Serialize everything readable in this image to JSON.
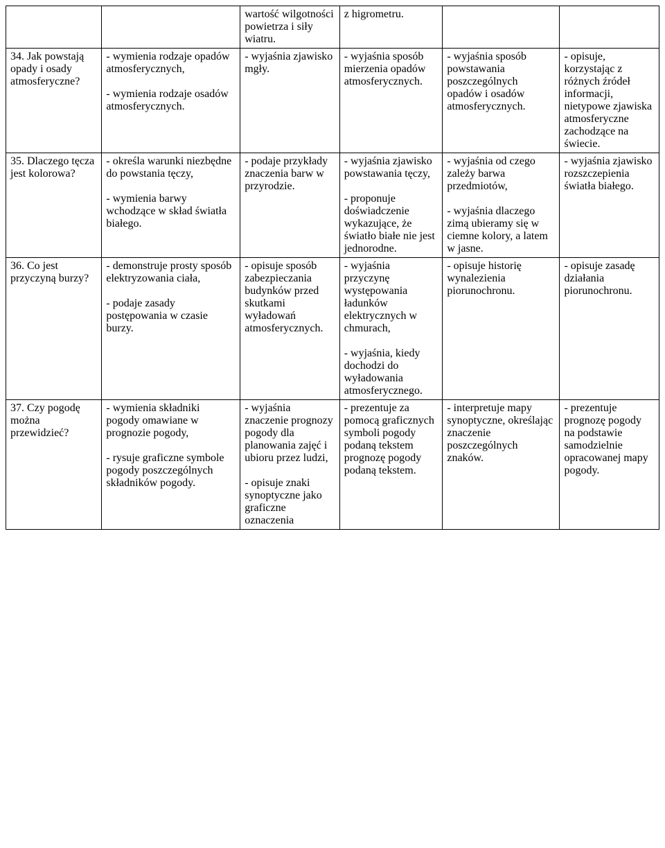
{
  "table": {
    "column_widths_pct": [
      13.5,
      19.5,
      14,
      14.5,
      16.5,
      14
    ],
    "border_color": "#000000",
    "background_color": "#ffffff",
    "font_family": "Times New Roman",
    "font_size_pt": 12,
    "rows": [
      {
        "c1": "",
        "c2": "",
        "c3": "wartość wilgotności powietrza i siły wiatru.",
        "c4": "z higrometru.",
        "c5": "",
        "c6": ""
      },
      {
        "c1": "34. Jak powstają opady i osady atmosferyczne?",
        "c2": "- wymienia rodzaje opadów atmosferycznych,\n\n- wymienia rodzaje osadów atmosferycznych.",
        "c3": "- wyjaśnia zjawisko mgły.",
        "c4": "- wyjaśnia sposób mierzenia opadów atmosferycznych.",
        "c5": "- wyjaśnia sposób powstawania poszczególnych opadów i osadów atmosferycznych.",
        "c6": "- opisuje, korzystając z różnych źródeł informacji, nietypowe zjawiska atmosferyczne zachodzące na świecie."
      },
      {
        "c1": "35. Dlaczego tęcza jest kolorowa?",
        "c2": "- określa warunki niezbędne do powstania tęczy,\n\n- wymienia barwy wchodzące w skład światła białego.",
        "c3": "- podaje przykłady znaczenia barw w przyrodzie.",
        "c3_spread_line": "barw w",
        "c4": "- wyjaśnia zjawisko powstawania tęczy,\n\n- proponuje doświadczenie wykazujące, że światło białe nie jest jednorodne.",
        "c5": "- wyjaśnia od czego zależy barwa przedmiotów,\n\n- wyjaśnia dlaczego zimą ubieramy się w ciemne kolory, a latem w jasne.",
        "c6": "- wyjaśnia zjawisko rozszczepienia światła białego."
      },
      {
        "c1": "36. Co jest przyczyną burzy?",
        "c2": "- demonstruje prosty sposób elektryzowania ciała,\n\n- podaje zasady postępowania w czasie burzy.",
        "c3": "- opisuje sposób zabezpieczania budynków przed skutkami wyładowań atmosferycznych.",
        "c4": "- wyjaśnia przyczynę występowania ładunków elektrycznych w chmurach,\n\n- wyjaśnia, kiedy dochodzi do wyładowania atmosferycznego.",
        "c5": "- opisuje historię wynalezienia piorunochronu.",
        "c6": "- opisuje zasadę działania piorunochronu."
      },
      {
        "c1": "37. Czy pogodę można przewidzieć?",
        "c2": "- wymienia składniki pogody omawiane w prognozie pogody,\n\n- rysuje graficzne symbole pogody poszczególnych składników pogody.",
        "c3": "- wyjaśnia znaczenie prognozy pogody dla planowania zajęć i ubioru przez ludzi,\n\n- opisuje znaki synoptyczne jako graficzne oznaczenia",
        "c4": "- prezentuje za pomocą graficznych symboli pogody podaną tekstem prognozę pogody podaną tekstem.",
        "c5": "- interpretuje mapy synoptyczne, określając znaczenie poszczególnych znaków.",
        "c6": "- prezentuje prognozę pogody na podstawie samodzielnie opracowanej mapy pogody."
      }
    ]
  }
}
